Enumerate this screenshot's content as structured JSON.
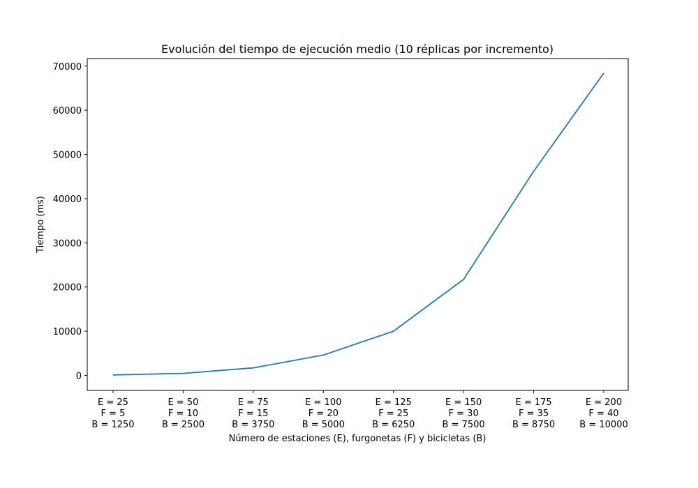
{
  "chart_data": {
    "type": "line",
    "title": "Evolución del tiempo de ejecución medio (10 réplicas por incremento)",
    "xlabel": "Número de estaciones (E), furgonetas (F) y bicicletas (B)",
    "ylabel": "Tiempo (ms)",
    "categories": [
      [
        "E = 25",
        "F = 5",
        "B = 1250"
      ],
      [
        "E = 50",
        "F = 10",
        "B = 2500"
      ],
      [
        "E = 75",
        "F = 15",
        "B = 3750"
      ],
      [
        "E = 100",
        "F = 20",
        "B = 5000"
      ],
      [
        "E = 125",
        "F = 25",
        "B = 6250"
      ],
      [
        "E = 150",
        "F = 30",
        "B = 7500"
      ],
      [
        "E = 175",
        "F = 35",
        "B = 8750"
      ],
      [
        "E = 200",
        "F = 40",
        "B = 10000"
      ]
    ],
    "series": [
      {
        "color": "#1f77b4",
        "values": [
          100,
          450,
          1700,
          4600,
          10000,
          21700,
          46200,
          68400
        ]
      }
    ],
    "ylim": [
      -3400,
      71700
    ],
    "yticks": [
      0,
      10000,
      20000,
      30000,
      40000,
      50000,
      60000,
      70000
    ],
    "grid": false,
    "legend": "none"
  }
}
